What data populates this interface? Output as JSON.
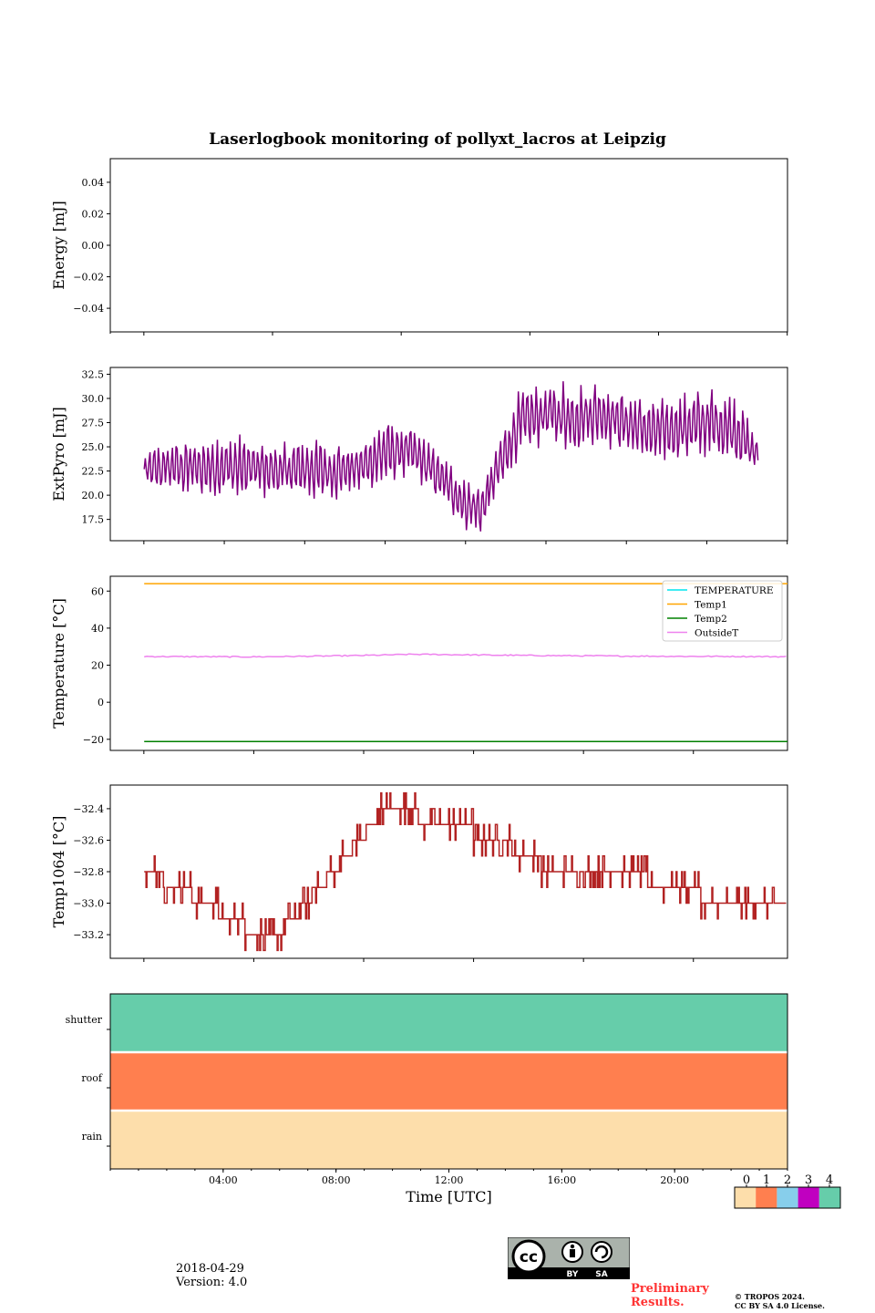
{
  "title": "Laserlogbook monitoring of pollyxt_lacros at Leipzig",
  "footer": {
    "date": "2018-04-29",
    "version": "Version: 4.0",
    "preliminary": "Preliminary\nResults.",
    "copyright": "© TROPOS 2024.\nCC BY SA 4.0 License.",
    "license_badge": {
      "top": "cc",
      "bottom": [
        "BY",
        "SA"
      ]
    }
  },
  "colors": {
    "energy": "#1f77b4",
    "extpyro": "#800080",
    "temperature": "#00e5ee",
    "temp1": "#ffa500",
    "temp2": "#008000",
    "outsideT": "#ee82ee",
    "temp1064": "#b22222",
    "status": [
      "#fddeab",
      "#ff7f4f",
      "#87ceeb",
      "#c000c0",
      "#66cdaa"
    ]
  },
  "chart_data": [
    {
      "type": "line",
      "ylabel": "Energy [mJ]",
      "xlim": [
        0,
        24
      ],
      "ylim": [
        -0.055,
        0.055
      ],
      "yticks": [
        0.04,
        0.02,
        0.0,
        -0.02,
        -0.04
      ],
      "yticklabels": [
        "0.04",
        "0.02",
        "0.00",
        "−0.02",
        "−0.04"
      ],
      "series": []
    },
    {
      "type": "line",
      "ylabel": "ExtPyro [mJ]",
      "xlim": [
        0,
        24
      ],
      "ylim": [
        15.3,
        33.2
      ],
      "yticks": [
        17.5,
        20.0,
        22.5,
        25.0,
        27.5,
        30.0,
        32.5
      ],
      "yticklabels": [
        "17.5",
        "20.0",
        "22.5",
        "25.0",
        "27.5",
        "30.0",
        "32.5"
      ],
      "series": [
        {
          "x": [
            0.0,
            1.0,
            2.0,
            3.0,
            4.0,
            5.0,
            6.0,
            7.0,
            8.0,
            9.0,
            10.0,
            11.0,
            12.0,
            12.6,
            13.0,
            14.0,
            15.0,
            16.0,
            17.0,
            18.0,
            19.0,
            20.0,
            21.0,
            22.0,
            22.9
          ],
          "mean": [
            22.5,
            23.0,
            22.8,
            23.0,
            22.8,
            22.5,
            22.8,
            22.5,
            22.8,
            24.5,
            24.5,
            22.0,
            19.0,
            18.5,
            21.5,
            27.5,
            28.5,
            28.0,
            28.5,
            27.5,
            26.5,
            27.0,
            27.5,
            27.0,
            24.0
          ],
          "amplitude": [
            1.5,
            2.5,
            2.5,
            2.5,
            2.5,
            2.0,
            2.5,
            2.5,
            2.0,
            2.5,
            2.0,
            2.0,
            2.0,
            2.0,
            2.5,
            2.5,
            2.5,
            3.0,
            2.5,
            2.5,
            2.5,
            2.5,
            3.0,
            3.0,
            1.5
          ],
          "min": 16.2,
          "max": 32.3
        }
      ]
    },
    {
      "type": "line",
      "ylabel": "Temperature [°C]",
      "xlim": [
        0,
        24
      ],
      "ylim": [
        -26,
        68
      ],
      "yticks": [
        60,
        40,
        20,
        0,
        -20
      ],
      "yticklabels": [
        "60",
        "40",
        "20",
        "0",
        "−20"
      ],
      "legend": {
        "position": "top-right",
        "entries": [
          "TEMPERATURE",
          "Temp1",
          "Temp2",
          "OutsideT"
        ]
      },
      "series": [
        {
          "name": "TEMPERATURE",
          "x": [],
          "y": []
        },
        {
          "name": "Temp1",
          "x": [
            0,
            24
          ],
          "y": [
            64,
            64
          ]
        },
        {
          "name": "Temp2",
          "x": [
            0,
            24
          ],
          "y": [
            -21.2,
            -21.2
          ]
        },
        {
          "name": "OutsideT",
          "x": [
            0,
            2,
            4,
            6,
            8,
            9,
            10,
            12,
            14,
            16,
            18,
            20,
            22,
            23.95
          ],
          "y": [
            24.7,
            24.6,
            24.5,
            24.8,
            25.2,
            25.5,
            25.9,
            25.6,
            25.3,
            25.1,
            24.9,
            24.8,
            24.7,
            24.6
          ]
        }
      ]
    },
    {
      "type": "line",
      "ylabel": "Temp1064 [°C]",
      "xlim": [
        0,
        24
      ],
      "ylim": [
        -33.35,
        -32.25
      ],
      "yticks": [
        -32.4,
        -32.6,
        -32.8,
        -33.0,
        -33.2
      ],
      "yticklabels": [
        "−32.4",
        "−32.6",
        "−32.8",
        "−33.0",
        "−33.2"
      ],
      "series": [
        {
          "x": [
            0.0,
            0.5,
            1.0,
            1.5,
            2.0,
            2.5,
            3.0,
            3.5,
            4.0,
            4.5,
            5.0,
            5.5,
            6.0,
            6.5,
            7.0,
            7.5,
            8.0,
            8.5,
            9.0,
            9.5,
            10.0,
            10.5,
            11.0,
            11.5,
            12.0,
            12.5,
            13.0,
            13.5,
            14.0,
            14.5,
            15.0,
            15.5,
            16.0,
            16.5,
            17.0,
            17.5,
            18.0,
            18.5,
            19.0,
            19.5,
            20.0,
            20.5,
            21.0,
            21.5,
            22.0,
            22.5,
            23.0,
            23.5,
            23.95
          ],
          "y": [
            -32.8,
            -32.8,
            -32.9,
            -32.9,
            -33.0,
            -33.0,
            -33.1,
            -33.1,
            -33.2,
            -33.2,
            -33.2,
            -33.1,
            -33.0,
            -32.9,
            -32.8,
            -32.7,
            -32.6,
            -32.5,
            -32.4,
            -32.4,
            -32.4,
            -32.5,
            -32.5,
            -32.5,
            -32.5,
            -32.6,
            -32.6,
            -32.6,
            -32.7,
            -32.7,
            -32.8,
            -32.8,
            -32.8,
            -32.8,
            -32.8,
            -32.8,
            -32.8,
            -32.8,
            -32.9,
            -32.9,
            -32.9,
            -32.9,
            -33.0,
            -33.0,
            -33.0,
            -33.0,
            -33.0,
            -33.0,
            -33.0
          ],
          "step": 0.1,
          "min": -33.3,
          "max": -32.3
        }
      ]
    },
    {
      "type": "heatmap",
      "xlabel": "Time [UTC]",
      "xlim": [
        0,
        24
      ],
      "rows": [
        "shutter",
        "roof",
        "rain"
      ],
      "row_values": [
        4,
        1,
        0
      ],
      "xticks": [
        4.0,
        8.0,
        12.0,
        16.0,
        20.0
      ],
      "xticklabels": [
        "04:00",
        "08:00",
        "12:00",
        "16:00",
        "20:00"
      ],
      "colorbar": {
        "ticks": [
          "0",
          "1",
          "2",
          "3",
          "4"
        ]
      }
    }
  ]
}
